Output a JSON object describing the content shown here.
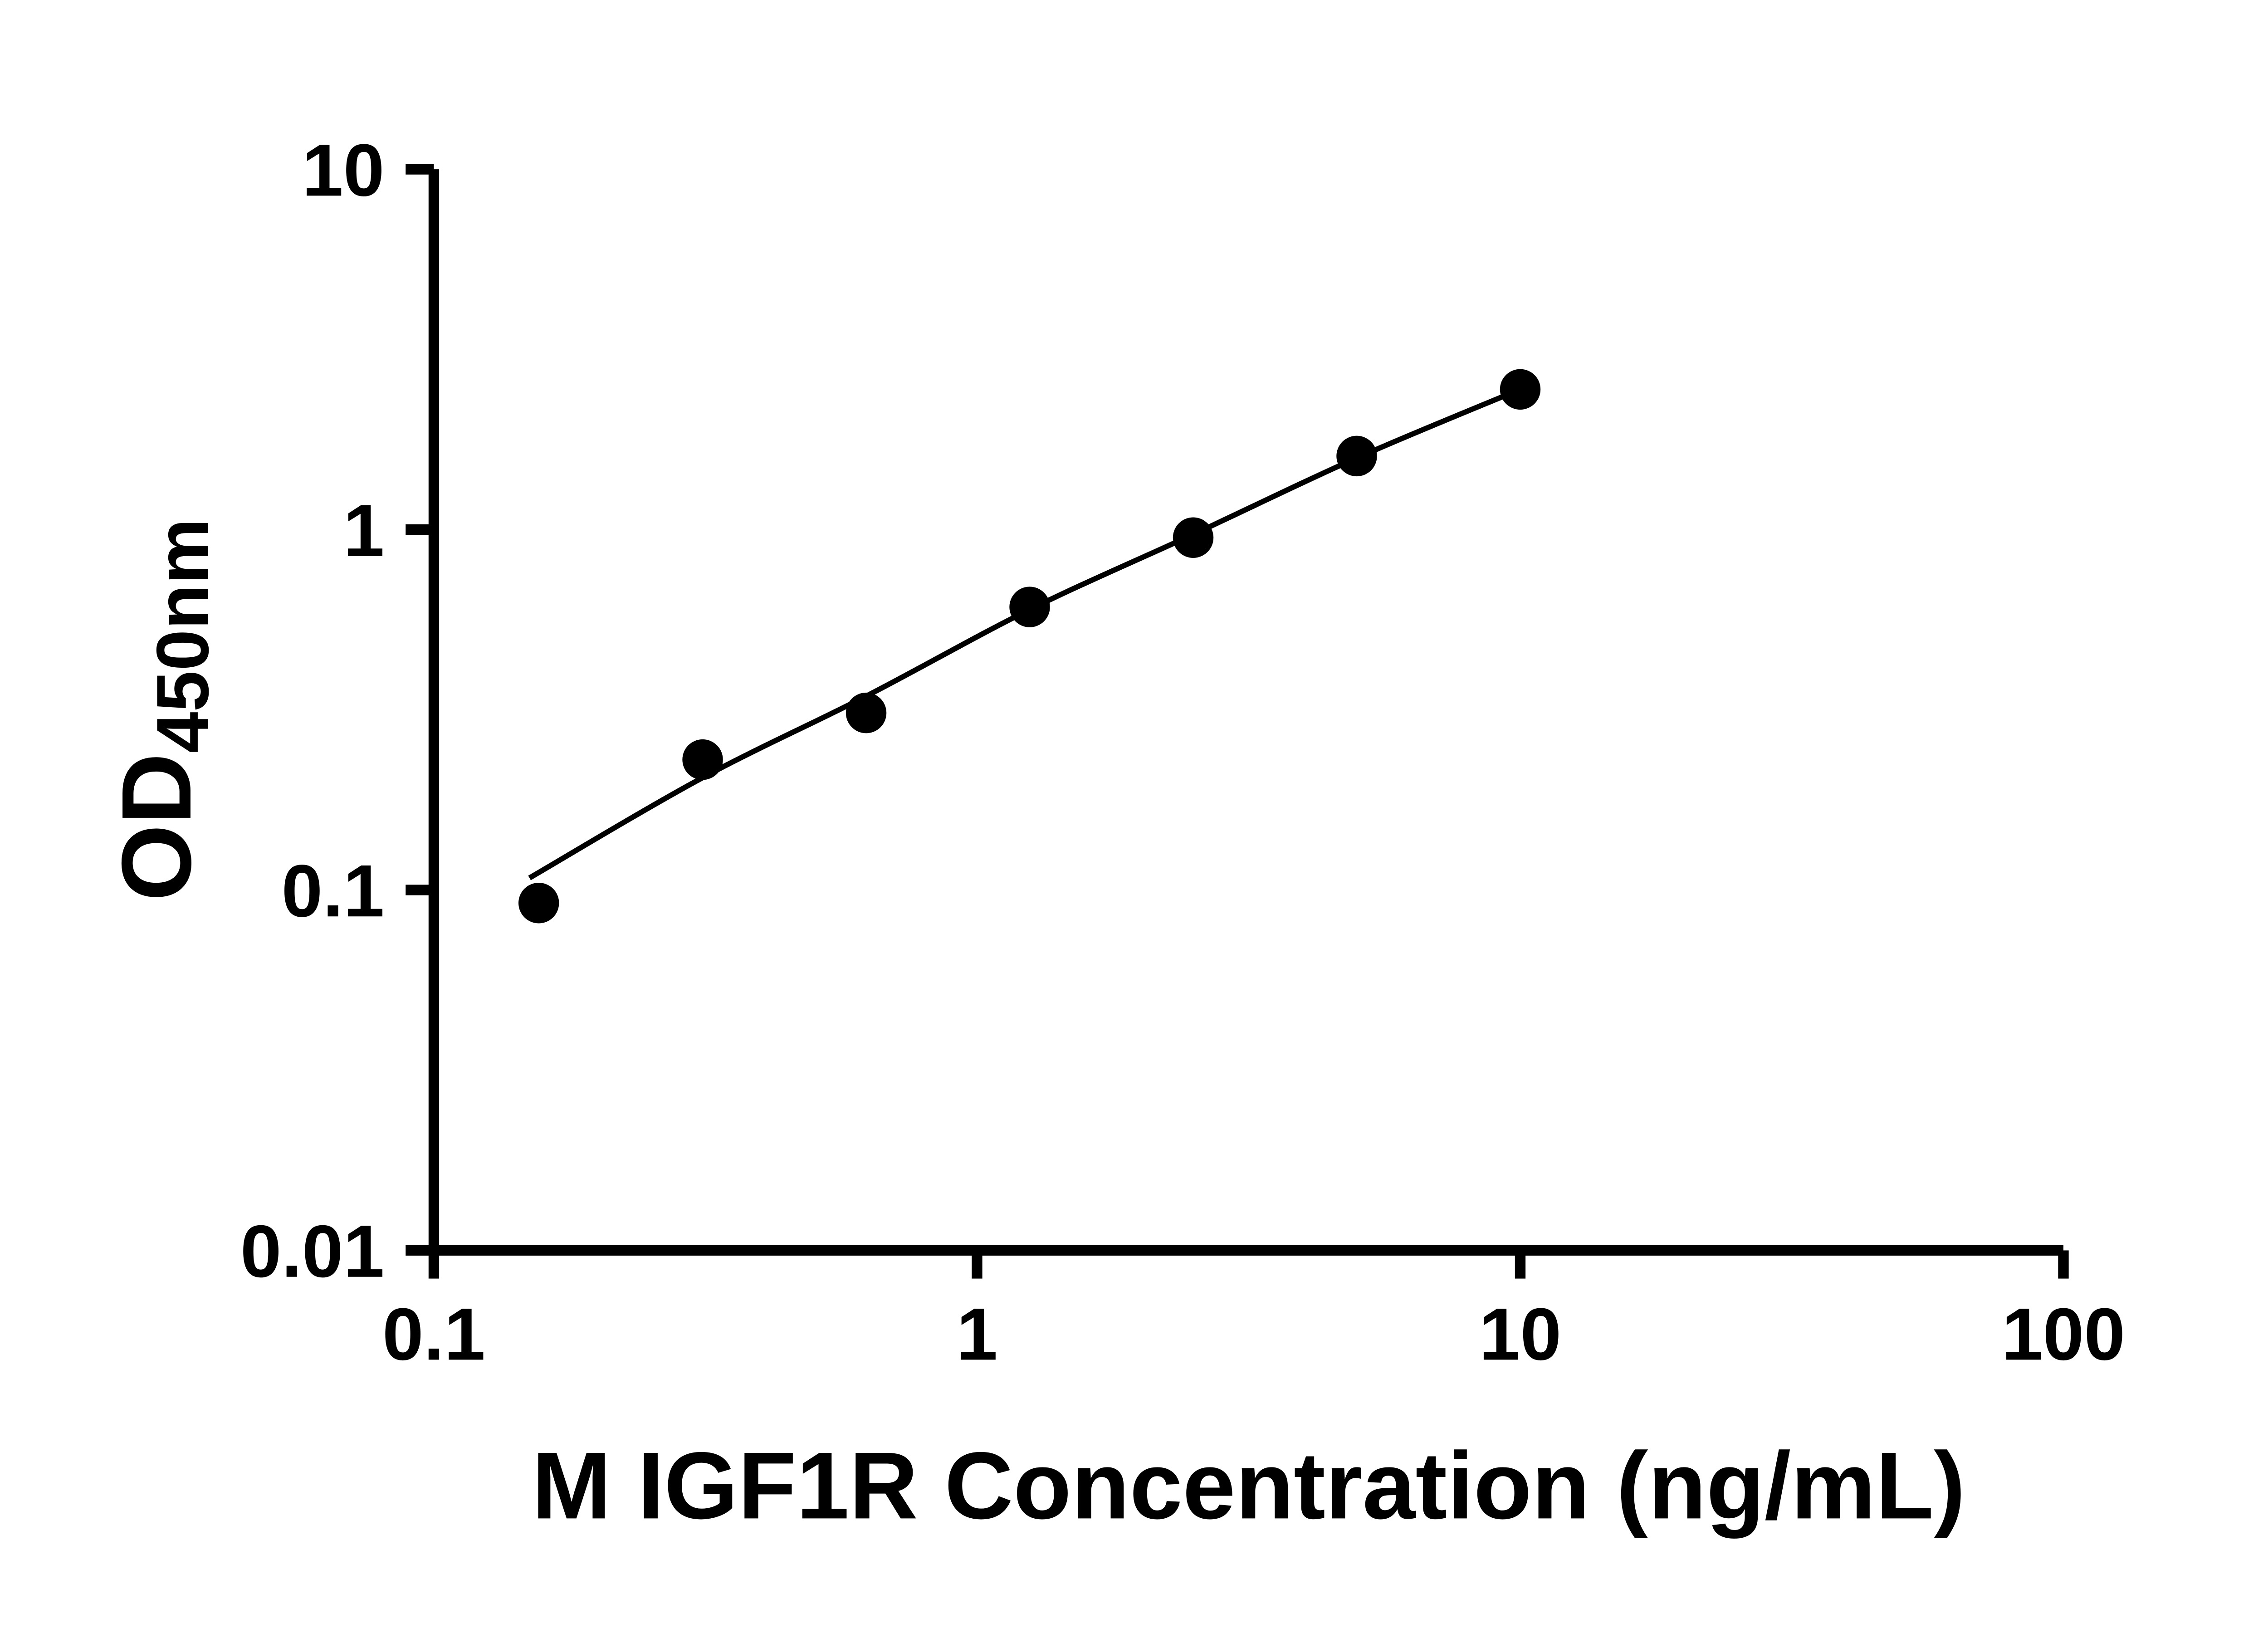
{
  "figure": {
    "background": "#ffffff"
  },
  "chart_data": {
    "type": "scatter",
    "title": "",
    "xlabel": "M IGF1R Concentration (ng/mL)",
    "ylabel": "OD450nm",
    "ylabel_main": "OD",
    "ylabel_sub": "450nm",
    "x_scale": "log",
    "y_scale": "log",
    "xlim": [
      0.1,
      100
    ],
    "ylim": [
      0.01,
      10
    ],
    "grid": false,
    "legend": false,
    "axis_color": "#000000",
    "text_color": "#000000",
    "marker_color": "#000000",
    "line_color": "#000000",
    "x_ticks": [
      {
        "value": 0.1,
        "label": "0.1"
      },
      {
        "value": 1,
        "label": "1"
      },
      {
        "value": 10,
        "label": "10"
      },
      {
        "value": 100,
        "label": "100"
      }
    ],
    "y_ticks": [
      {
        "value": 0.01,
        "label": "0.01"
      },
      {
        "value": 0.1,
        "label": "0.1"
      },
      {
        "value": 1,
        "label": "1"
      },
      {
        "value": 10,
        "label": "10"
      }
    ],
    "series": [
      {
        "marker": "circle",
        "color": "#000000",
        "x": [
          0.156,
          0.3125,
          0.625,
          1.25,
          2.5,
          5,
          10
        ],
        "y": [
          0.092,
          0.23,
          0.31,
          0.61,
          0.95,
          1.6,
          2.45
        ]
      }
    ],
    "fit_curve": {
      "color": "#000000",
      "x": [
        0.15,
        0.3125,
        0.625,
        1.25,
        2.5,
        5,
        10
      ],
      "y": [
        0.108,
        0.205,
        0.345,
        0.6,
        0.97,
        1.58,
        2.45
      ]
    }
  }
}
